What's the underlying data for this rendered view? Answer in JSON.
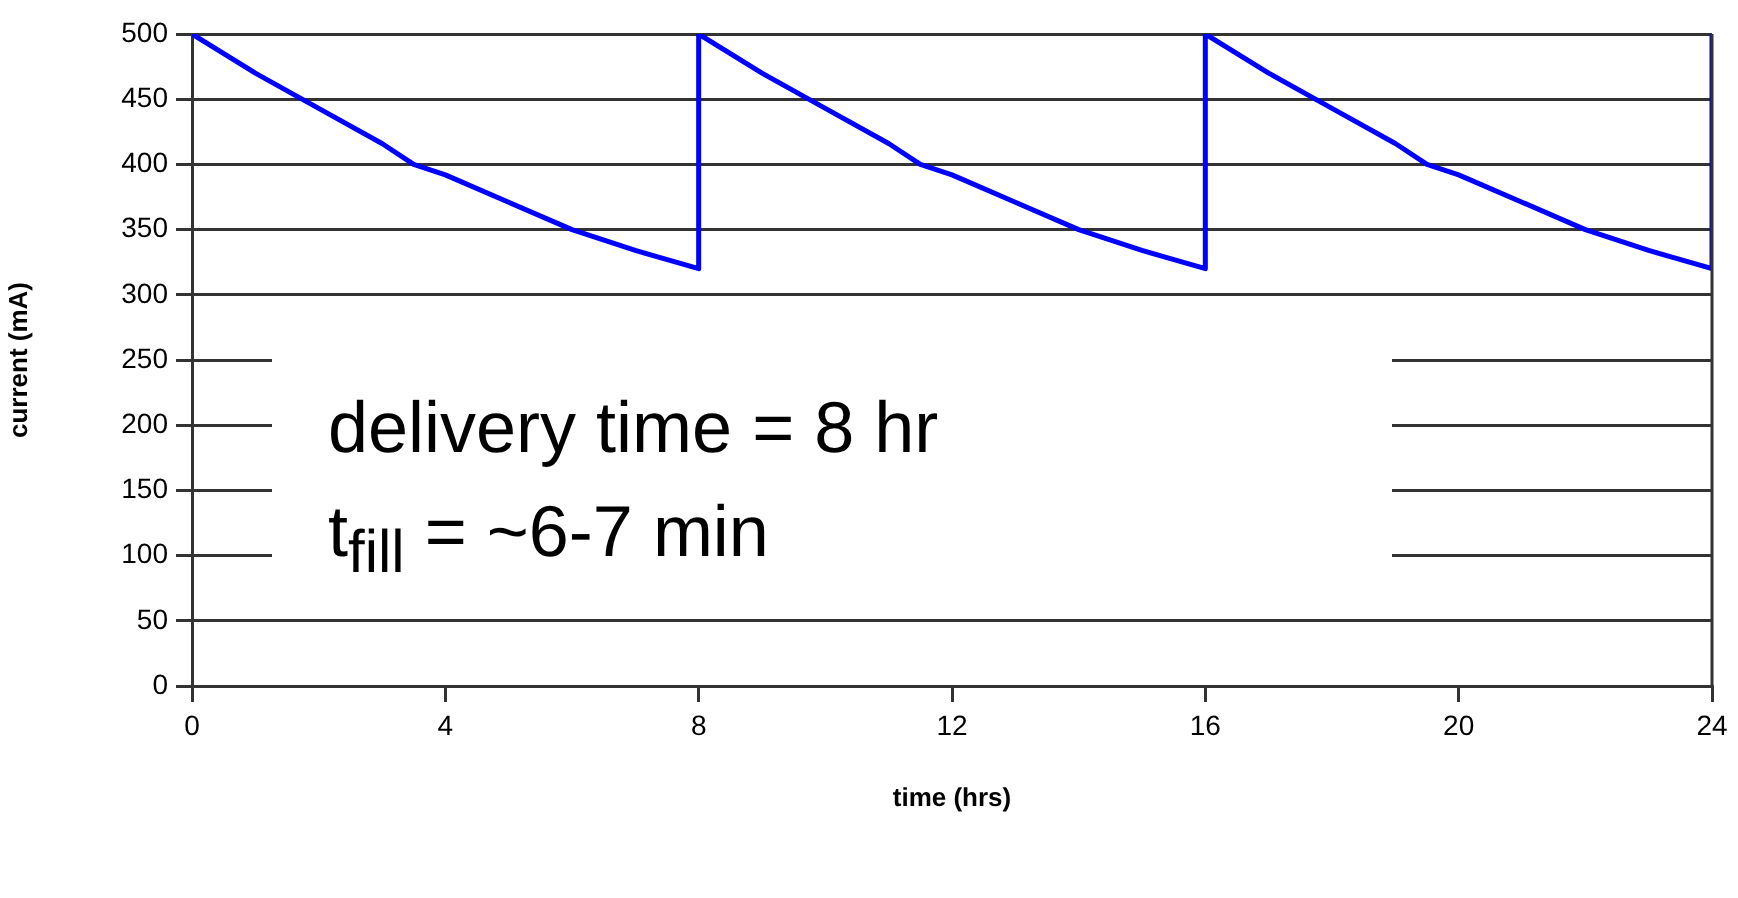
{
  "chart_data": {
    "type": "line",
    "xlabel": "time (hrs)",
    "ylabel": "current (mA)",
    "x": [
      0,
      1,
      2,
      3,
      3.5,
      4,
      5,
      6,
      7,
      8,
      8,
      9,
      10,
      11,
      11.5,
      12,
      13,
      14,
      15,
      16,
      16,
      17,
      18,
      19,
      19.5,
      20,
      21,
      22,
      23,
      24,
      24
    ],
    "series": [
      {
        "color": "#0000ff",
        "values": [
          500,
          470,
          443,
          416,
          400,
          392,
          371,
          350,
          334,
          320,
          500,
          470,
          443,
          416,
          400,
          392,
          371,
          350,
          334,
          320,
          500,
          470,
          443,
          416,
          400,
          392,
          371,
          350,
          334,
          320,
          500
        ]
      }
    ],
    "xlim": [
      0,
      24
    ],
    "xticks": [
      0,
      4,
      8,
      12,
      16,
      20,
      24
    ],
    "ylim": [
      0,
      500
    ],
    "yticks": [
      0,
      50,
      100,
      150,
      200,
      250,
      300,
      350,
      400,
      450,
      500
    ],
    "grid": "y",
    "legend": false,
    "marker": "none",
    "line_style": "solid",
    "annotations": [
      "delivery time = 8 hr",
      "t$_{fill}$ = ~6-7 min"
    ]
  }
}
